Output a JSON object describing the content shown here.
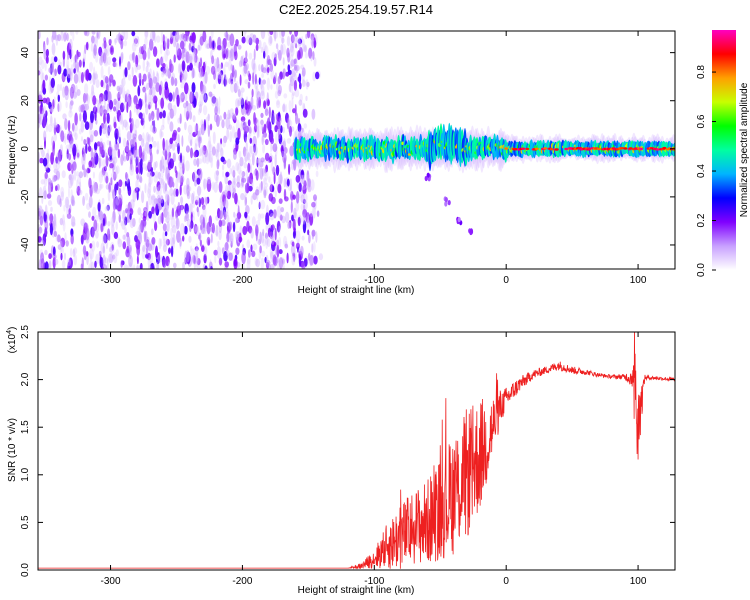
{
  "chart_data": [
    {
      "type": "heatmap",
      "title": "C2E2.2025.254.19.57.R14",
      "xlabel": "Height of straight line (km)",
      "ylabel": "Frequency (Hz)",
      "xlim": [
        -355,
        128
      ],
      "ylim": [
        -50,
        49
      ],
      "xticks": [
        -300,
        -200,
        -100,
        0,
        100
      ],
      "yticks": [
        -40,
        -20,
        0,
        20,
        40
      ],
      "colorbar": {
        "label": "Normalized spectral amplitude",
        "range": [
          0.0,
          0.97
        ],
        "ticks": [
          0.0,
          0.2,
          0.4,
          0.6,
          0.8
        ],
        "colormap": [
          "#ffffff",
          "#c8a0ff",
          "#8000ff",
          "#0000ff",
          "#00b4ff",
          "#00ffa0",
          "#00ff00",
          "#c8ff00",
          "#ffa000",
          "#ff0000",
          "#ff00c0"
        ]
      },
      "regions": [
        {
          "name": "noise",
          "x_range": [
            -355,
            -140
          ],
          "freq_range": [
            -50,
            49
          ],
          "amplitude": 0.05
        },
        {
          "name": "signal band",
          "x_range": [
            -160,
            128
          ],
          "center_freq": 0,
          "half_width": 5,
          "peak_amplitude": 0.9
        },
        {
          "name": "descending trace",
          "points": [
            [
              -60,
              -12
            ],
            [
              -45,
              -22
            ],
            [
              -35,
              -30
            ],
            [
              -28,
              -35
            ]
          ]
        }
      ]
    },
    {
      "type": "line",
      "xlabel": "Height of straight line (km)",
      "ylabel": "SNR (10 * v/v)",
      "multiplier": "(x10^4)",
      "multiplier_base": "(x10",
      "multiplier_exp": "4",
      "multiplier_close": ")",
      "xlim": [
        -355,
        128
      ],
      "ylim": [
        0.0,
        2.5
      ],
      "xticks": [
        -300,
        -200,
        -100,
        0,
        100
      ],
      "yticks": [
        0.0,
        0.5,
        1.0,
        1.5,
        2.0,
        2.5
      ],
      "ytick_labels": [
        "0.0",
        "0.5",
        "1.0",
        "1.5",
        "2.0",
        "2.5"
      ],
      "color": "#ee2020",
      "series": [
        {
          "name": "SNR",
          "x": [
            -355,
            -200,
            -120,
            -110,
            -100,
            -90,
            -80,
            -70,
            -60,
            -50,
            -40,
            -30,
            -20,
            -15,
            -10,
            -5,
            0,
            10,
            20,
            30,
            40,
            50,
            60,
            70,
            80,
            90,
            95,
            98,
            100,
            105,
            110,
            120,
            128
          ],
          "y": [
            0.02,
            0.02,
            0.02,
            0.04,
            0.12,
            0.25,
            0.35,
            0.45,
            0.5,
            0.65,
            0.8,
            1.0,
            1.2,
            1.35,
            1.5,
            1.7,
            1.8,
            1.95,
            2.05,
            2.1,
            2.15,
            2.1,
            2.08,
            2.05,
            2.03,
            2.03,
            2.02,
            2.2,
            1.5,
            2.02,
            2.02,
            2.01,
            2.0
          ],
          "noise_amplitude": [
            0.0,
            0.0,
            0.0,
            0.03,
            0.1,
            0.25,
            0.35,
            0.4,
            0.45,
            0.55,
            0.65,
            0.7,
            0.6,
            0.5,
            0.35,
            0.2,
            0.12,
            0.08,
            0.05,
            0.04,
            0.05,
            0.04,
            0.03,
            0.02,
            0.02,
            0.03,
            0.1,
            0.3,
            0.4,
            0.03,
            0.02,
            0.02,
            0.02
          ]
        }
      ]
    }
  ]
}
